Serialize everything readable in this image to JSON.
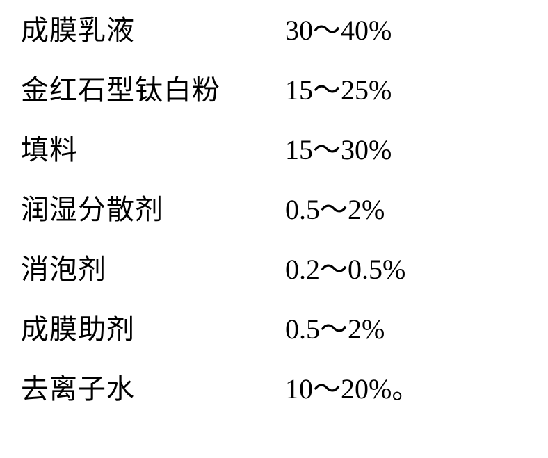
{
  "background_color": "#ffffff",
  "text_color": "#000000",
  "font_family": "SimSun, Songti SC, serif",
  "font_size_pt": 30,
  "rows": [
    {
      "label": "成膜乳液",
      "value": "30～40%"
    },
    {
      "label": "金红石型钛白粉",
      "value": "15～25%"
    },
    {
      "label": "填料",
      "value": "15～30%"
    },
    {
      "label": "润湿分散剂",
      "value": "0.5～2%"
    },
    {
      "label": "消泡剂",
      "value": "0.2～0.5%"
    },
    {
      "label": "成膜助剂",
      "value": "0.5～2%"
    },
    {
      "label": "去离子水",
      "value": "10～20%。"
    }
  ]
}
